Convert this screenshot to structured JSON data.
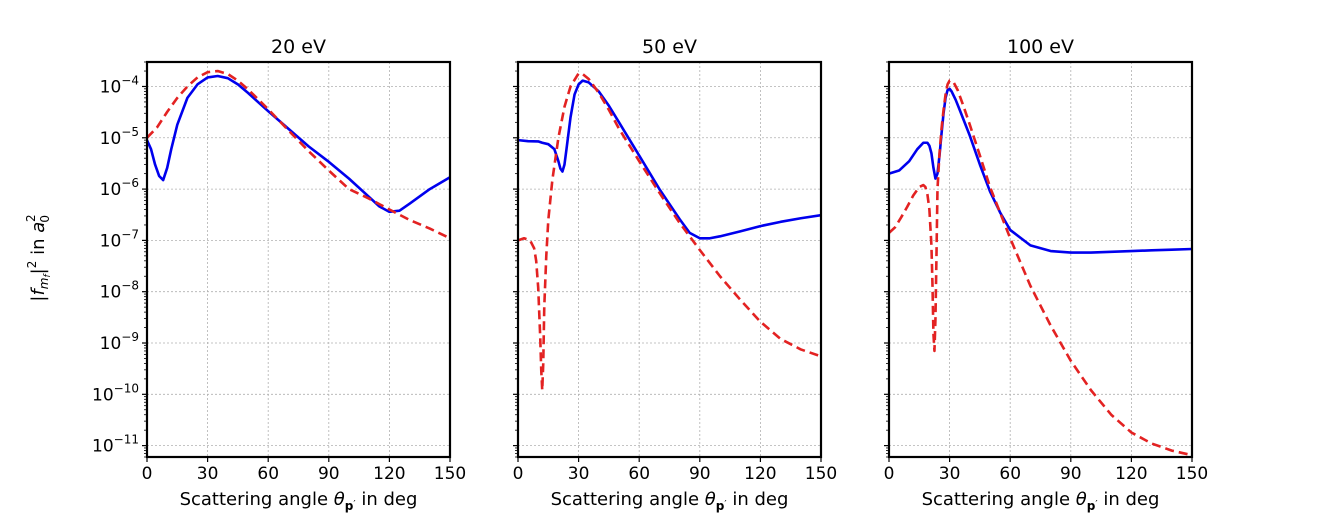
{
  "chart_data": {
    "type": "line",
    "ylabel_parts": {
      "f": "f",
      "sub_m": "m",
      "sub_f": "f",
      "sq": "2",
      "in": "in",
      "a": "a",
      "sub_0": "0",
      "sup_2": "2"
    },
    "y_axis": {
      "scale": "log",
      "ylim": [
        6e-12,
        0.0003
      ],
      "tick_exponents": [
        -4,
        -5,
        -6,
        -7,
        -8,
        -9,
        -10,
        -11
      ],
      "tick_base": "10"
    },
    "x_axis": {
      "xlim": [
        0,
        150
      ],
      "ticks": [
        0,
        30,
        60,
        90,
        120,
        150
      ],
      "tick_labels": [
        "0",
        "30",
        "60",
        "90",
        "120",
        "150"
      ],
      "xlabel": {
        "text": "Scattering angle ",
        "theta": "θ",
        "sub": "p",
        "prime": "′",
        "suffix": " in deg"
      }
    },
    "series_styles": {
      "blue": {
        "color": "#0000ee",
        "dash": "solid"
      },
      "red": {
        "color": "#e32222",
        "dash": "dashed"
      }
    },
    "panels": [
      {
        "title": "20 eV",
        "series": [
          {
            "name": "blue",
            "x": [
              0,
              2,
              4,
              6,
              8,
              10,
              12,
              15,
              20,
              25,
              30,
              35,
              40,
              45,
              50,
              60,
              70,
              80,
              90,
              100,
              110,
              115,
              120,
              125,
              130,
              140,
              150
            ],
            "y": [
              9e-06,
              6e-06,
              3e-06,
              1.8e-06,
              1.5e-06,
              2.6e-06,
              6e-06,
              1.8e-05,
              6e-05,
              0.00011,
              0.00015,
              0.00016,
              0.000145,
              0.00011,
              7.5e-05,
              3.3e-05,
              1.5e-05,
              6.8e-06,
              3.4e-06,
              1.6e-06,
              7e-07,
              4.6e-07,
              3.6e-07,
              3.8e-07,
              5.2e-07,
              1e-06,
              1.7e-06
            ]
          },
          {
            "name": "red",
            "x": [
              0,
              5,
              10,
              15,
              20,
              25,
              30,
              35,
              40,
              45,
              50,
              60,
              70,
              80,
              90,
              100,
              110,
              120,
              130,
              140,
              150
            ],
            "y": [
              1e-05,
              1.6e-05,
              3.2e-05,
              6e-05,
              0.0001,
              0.00015,
              0.00019,
              0.0002,
              0.000175,
              0.00013,
              8.8e-05,
              3.6e-05,
              1.4e-05,
              5.5e-06,
              2.3e-06,
              1e-06,
              6.5e-07,
              4e-07,
              2.5e-07,
              1.7e-07,
              1.1e-07
            ]
          }
        ]
      },
      {
        "title": "50 eV",
        "series": [
          {
            "name": "blue",
            "x": [
              0,
              5,
              10,
              12,
              15,
              18,
              20,
              21,
              22,
              23,
              24,
              26,
              28,
              30,
              32,
              35,
              40,
              45,
              50,
              60,
              70,
              80,
              85,
              90,
              95,
              100,
              110,
              120,
              130,
              140,
              150
            ],
            "y": [
              9e-06,
              8.6e-06,
              8.5e-06,
              8e-06,
              7.5e-06,
              6e-06,
              3.5e-06,
              2.5e-06,
              2.2e-06,
              3e-06,
              6e-06,
              2.5e-05,
              7e-05,
              0.00011,
              0.00013,
              0.00012,
              8e-05,
              4.2e-05,
              2e-05,
              4.5e-06,
              1e-06,
              2.6e-07,
              1.4e-07,
              1.1e-07,
              1.1e-07,
              1.2e-07,
              1.5e-07,
              1.9e-07,
              2.3e-07,
              2.7e-07,
              3.1e-07
            ]
          },
          {
            "name": "red",
            "x": [
              0,
              3,
              6,
              8,
              9,
              10,
              11,
              11.5,
              12,
              12.5,
              13,
              14,
              15,
              17,
              20,
              23,
              26,
              30,
              32,
              35,
              40,
              45,
              50,
              60,
              70,
              80,
              90,
              100,
              110,
              120,
              130,
              140,
              150
            ],
            "y": [
              1e-07,
              1.1e-07,
              1e-07,
              7e-08,
              4e-08,
              1.2e-08,
              1.3e-09,
              3e-10,
              1.2e-10,
              4e-10,
              5e-09,
              5e-08,
              2.5e-07,
              1.5e-06,
              1e-05,
              4e-05,
              0.0001,
              0.00018,
              0.000175,
              0.00014,
              7.5e-05,
              3.5e-05,
              1.5e-05,
              3.5e-06,
              8.5e-07,
              2.2e-07,
              6.5e-08,
              2e-08,
              7e-09,
              2.6e-09,
              1.2e-09,
              7.5e-10,
              5.5e-10
            ]
          }
        ]
      },
      {
        "title": "100 eV",
        "series": [
          {
            "name": "blue",
            "x": [
              0,
              5,
              10,
              14,
              17,
              19,
              20,
              21,
              22,
              23,
              24,
              25,
              26,
              27,
              28,
              29,
              30,
              31,
              33,
              35,
              40,
              45,
              50,
              55,
              60,
              70,
              80,
              90,
              100,
              110,
              120,
              130,
              140,
              150
            ],
            "y": [
              2e-06,
              2.3e-06,
              3.5e-06,
              6e-06,
              8e-06,
              8e-06,
              7e-06,
              5e-06,
              2.6e-06,
              1.6e-06,
              2e-06,
              4.5e-06,
              1.2e-05,
              3e-05,
              6e-05,
              8.5e-05,
              9e-05,
              8e-05,
              5.5e-05,
              3.5e-05,
              1.1e-05,
              3e-06,
              9e-07,
              3.5e-07,
              1.6e-07,
              8e-08,
              6.2e-08,
              5.8e-08,
              5.8e-08,
              6e-08,
              6.2e-08,
              6.4e-08,
              6.6e-08,
              6.8e-08
            ]
          },
          {
            "name": "red",
            "x": [
              0,
              3,
              6,
              9,
              12,
              15,
              17,
              18,
              19,
              20,
              21,
              21.5,
              22,
              22.5,
              23,
              23.5,
              24,
              25,
              26,
              27,
              28,
              29,
              30,
              31,
              32,
              34,
              37,
              40,
              45,
              50,
              60,
              70,
              80,
              90,
              100,
              110,
              120,
              130,
              140,
              150
            ],
            "y": [
              1.4e-07,
              1.8e-07,
              2.8e-07,
              4.5e-07,
              7.5e-07,
              1.1e-06,
              1.2e-06,
              1.1e-06,
              8e-07,
              4e-07,
              8e-08,
              1.5e-08,
              1.5e-09,
              7e-10,
              3e-09,
              5e-08,
              1e-06,
              5e-06,
              1.5e-05,
              3.5e-05,
              7e-05,
              0.00011,
              0.00013,
              0.00013,
              0.00012,
              8.5e-05,
              4e-05,
              1.8e-05,
              4.5e-06,
              1.1e-06,
              1.1e-07,
              1.3e-08,
              2.2e-09,
              4.5e-10,
              1.2e-10,
              4e-11,
              1.8e-11,
              1.1e-11,
              8e-12,
              6.5e-12
            ]
          }
        ]
      }
    ]
  }
}
